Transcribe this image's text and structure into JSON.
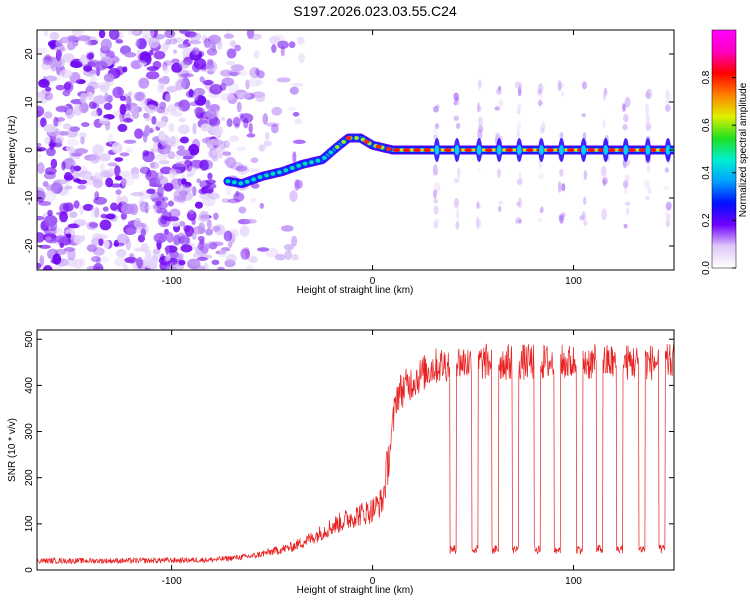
{
  "title": "S197.2026.023.03.55.C24",
  "chart_data": [
    {
      "type": "heatmap",
      "name": "spectrogram",
      "xlabel": "Height of straight line (km)",
      "ylabel": "Frequency (Hz)",
      "xlim": [
        -167,
        150
      ],
      "ylim": [
        -25,
        25
      ],
      "xticks": [
        -100,
        0,
        100
      ],
      "yticks": [
        -20,
        -10,
        0,
        10,
        20
      ],
      "colorbar": {
        "label": "Normalized spectral amplitude",
        "range": [
          0,
          1
        ],
        "ticks": [
          0.0,
          0.2,
          0.4,
          0.6,
          0.8
        ],
        "colors": [
          "#ffffff",
          "#e0c8f8",
          "#7000ff",
          "#0010ff",
          "#00a0ff",
          "#00f0d0",
          "#20e020",
          "#e0f000",
          "#ff8000",
          "#ff0000",
          "#ff00c0",
          "#ff00ff"
        ]
      },
      "trace": {
        "x": [
          -72,
          -65,
          -55,
          -45,
          -35,
          -25,
          -18,
          -12,
          -6,
          0,
          10,
          150
        ],
        "freq": [
          -6.5,
          -7.0,
          -5.5,
          -4.5,
          -3.0,
          -2.0,
          0.5,
          2.5,
          2.5,
          1.0,
          0.0,
          0.0
        ]
      },
      "pulses_x": [
        32,
        42,
        53,
        63,
        73,
        84,
        94,
        105,
        116,
        126,
        137,
        147
      ]
    },
    {
      "type": "line",
      "name": "snr",
      "xlabel": "Height of straight line (km)",
      "ylabel": "SNR (10 * v/v)",
      "xlim": [
        -167,
        150
      ],
      "ylim": [
        0,
        520
      ],
      "xticks": [
        -100,
        0,
        100
      ],
      "yticks": [
        0,
        100,
        200,
        300,
        400,
        500
      ],
      "color": "#e82020",
      "envelope": {
        "x": [
          -167,
          -120,
          -80,
          -60,
          -50,
          -40,
          -30,
          -20,
          -10,
          0,
          5,
          8,
          12,
          20,
          30,
          40,
          150
        ],
        "y": [
          20,
          20,
          22,
          30,
          40,
          50,
          70,
          95,
          115,
          130,
          150,
          240,
          380,
          410,
          440,
          450,
          450
        ]
      },
      "dips": {
        "x": [
          40,
          51,
          61,
          71,
          82,
          92,
          103,
          113,
          123,
          134,
          144
        ],
        "y": 45
      }
    }
  ]
}
